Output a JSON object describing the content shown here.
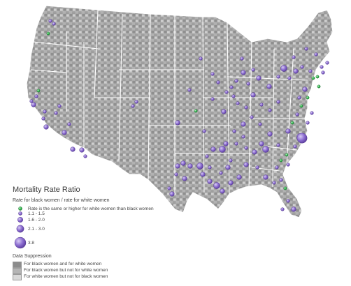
{
  "legend": {
    "title": "Mortality Rate Ratio",
    "subtitle": "Rate for black women / rate for white women",
    "classes": [
      {
        "label": "Rate is the same or higher for white women than black women",
        "color": "#27b04a"
      },
      {
        "label": "1.1 - 1.5",
        "color": "#7c5cc4"
      },
      {
        "label": "1.6 - 2.0",
        "color": "#7c5cc4"
      },
      {
        "label": "2.1 - 3.0",
        "color": "#7c5cc4"
      },
      {
        "label": "3.8",
        "color": "#7c5cc4"
      }
    ]
  },
  "suppression": {
    "title": "Data Suppression",
    "items": [
      {
        "label": "For black women and for white women",
        "color": "#8c8c8c"
      },
      {
        "label": "For black women but not for white women",
        "color": "#b4b4b4"
      },
      {
        "label": "For white women but not for black women",
        "color": "#d8d8d8"
      }
    ]
  }
}
